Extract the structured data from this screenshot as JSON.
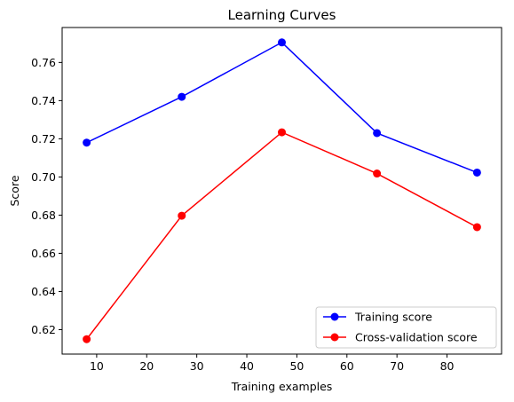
{
  "chart_data": {
    "type": "line",
    "title": "Learning Curves",
    "xlabel": "Training examples",
    "ylabel": "Score",
    "xlim": [
      3.1,
      90.9
    ],
    "ylim": [
      0.6072,
      0.7783
    ],
    "xticks": [
      10,
      20,
      30,
      40,
      50,
      60,
      70,
      80
    ],
    "yticks": [
      0.62,
      0.64,
      0.66,
      0.68,
      0.7,
      0.72,
      0.74,
      0.76
    ],
    "ytick_labels": [
      "0.62",
      "0.64",
      "0.66",
      "0.68",
      "0.70",
      "0.72",
      "0.74",
      "0.76"
    ],
    "grid": false,
    "legend_position": "lower-right",
    "series": [
      {
        "name": "Training score",
        "color": "#0000ff",
        "marker": "circle",
        "x": [
          8,
          27,
          47,
          66,
          86
        ],
        "y": [
          0.718,
          0.742,
          0.7705,
          0.723,
          0.7023
        ]
      },
      {
        "name": "Cross-validation score",
        "color": "#ff0000",
        "marker": "circle",
        "x": [
          8,
          27,
          47,
          66,
          86
        ],
        "y": [
          0.615,
          0.6797,
          0.7234,
          0.7018,
          0.6737
        ]
      }
    ]
  }
}
